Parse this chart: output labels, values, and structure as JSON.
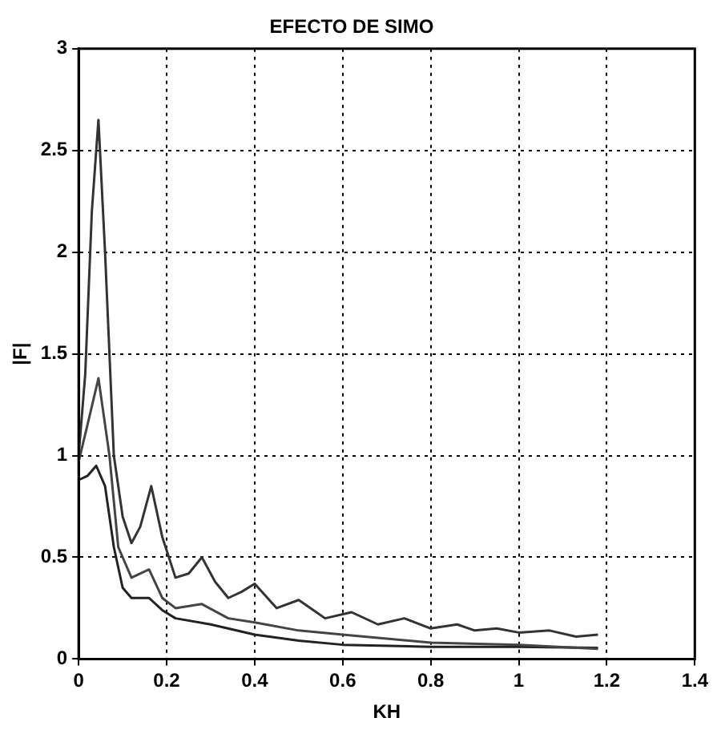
{
  "chart_data": {
    "type": "line",
    "title": "EFECTO DE SIMO",
    "xlabel": "KH",
    "ylabel": "|F|",
    "xlim": [
      0,
      1.4
    ],
    "xticks": [
      0,
      0.2,
      0.4,
      0.6,
      0.8,
      1,
      1.2,
      1.4
    ],
    "ylim": [
      0,
      3
    ],
    "yticks": [
      0,
      0.5,
      1,
      1.5,
      2,
      2.5,
      3
    ],
    "grid": true,
    "legend": false,
    "marker": "none",
    "line_style": "solid",
    "series": [
      {
        "color": "#333333",
        "x": [
          0,
          0.015,
          0.03,
          0.045,
          0.06,
          0.08,
          0.1,
          0.12,
          0.14,
          0.165,
          0.19,
          0.22,
          0.25,
          0.28,
          0.31,
          0.34,
          0.37,
          0.4,
          0.45,
          0.5,
          0.56,
          0.62,
          0.68,
          0.74,
          0.8,
          0.86,
          0.9,
          0.95,
          1.0,
          1.07,
          1.13,
          1.18
        ],
        "values": [
          1.0,
          1.4,
          2.2,
          2.65,
          2.0,
          1.0,
          0.7,
          0.57,
          0.65,
          0.85,
          0.6,
          0.4,
          0.42,
          0.5,
          0.38,
          0.3,
          0.33,
          0.37,
          0.25,
          0.29,
          0.2,
          0.23,
          0.17,
          0.2,
          0.15,
          0.17,
          0.14,
          0.15,
          0.13,
          0.14,
          0.11,
          0.12
        ]
      },
      {
        "color": "#444444",
        "x": [
          0,
          0.02,
          0.045,
          0.07,
          0.09,
          0.12,
          0.16,
          0.19,
          0.22,
          0.28,
          0.34,
          0.4,
          0.5,
          0.6,
          0.7,
          0.8,
          1.0,
          1.18
        ],
        "values": [
          0.97,
          1.15,
          1.38,
          1.0,
          0.55,
          0.4,
          0.44,
          0.3,
          0.25,
          0.27,
          0.2,
          0.18,
          0.14,
          0.12,
          0.1,
          0.08,
          0.07,
          0.05
        ]
      },
      {
        "color": "#222222",
        "x": [
          0,
          0.02,
          0.04,
          0.06,
          0.08,
          0.1,
          0.12,
          0.16,
          0.19,
          0.22,
          0.3,
          0.4,
          0.5,
          0.6,
          0.8,
          1.0,
          1.18
        ],
        "values": [
          0.88,
          0.9,
          0.95,
          0.85,
          0.55,
          0.35,
          0.3,
          0.3,
          0.24,
          0.2,
          0.17,
          0.12,
          0.09,
          0.07,
          0.06,
          0.06,
          0.055
        ]
      }
    ]
  }
}
